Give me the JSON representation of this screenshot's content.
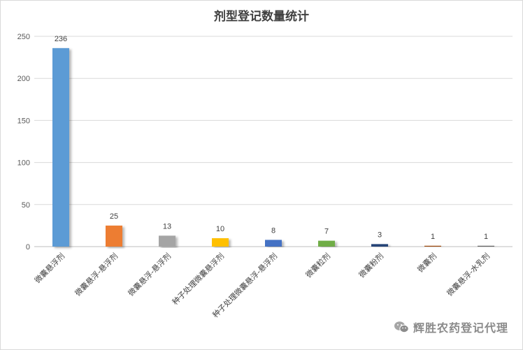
{
  "chart_data": {
    "type": "bar",
    "title": "剂型登记数量统计",
    "xlabel": "",
    "ylabel": "",
    "categories": [
      "微囊悬浮剂",
      "微囊悬浮-悬浮剂",
      "微囊悬浮-悬浮剂",
      "种子处理微囊悬浮剂",
      "种子处理微囊悬浮-悬浮剂",
      "微囊粒剂",
      "微囊粉剂",
      "微囊剂",
      "微囊悬浮-水乳剂"
    ],
    "values": [
      236,
      25,
      13,
      10,
      8,
      7,
      3,
      1,
      1
    ],
    "data_labels": [
      "236",
      "25",
      "13",
      "10",
      "8",
      "7",
      "3",
      "1",
      "1"
    ],
    "bar_colors": [
      "#5b9bd5",
      "#ed7d31",
      "#a5a5a5",
      "#ffc000",
      "#4472c4",
      "#70ad47",
      "#264478",
      "#9e480e",
      "#636363"
    ],
    "ylim": [
      0,
      250
    ],
    "yticks": [
      0,
      50,
      100,
      150,
      200,
      250
    ],
    "ytick_labels": [
      "0",
      "50",
      "100",
      "150",
      "200",
      "250"
    ],
    "grid": true,
    "legend": "none"
  },
  "watermark": {
    "icon": "wechat-icon",
    "text": "辉胜农药登记代理"
  }
}
